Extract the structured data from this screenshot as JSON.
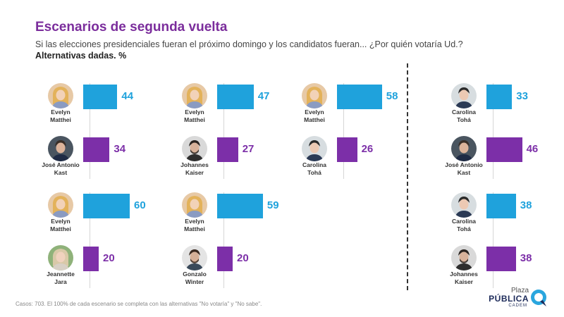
{
  "header": {
    "title": "Escenarios de segunda vuelta",
    "subtitle": "Si las elecciones presidenciales fueran el próximo domingo y los candidatos fueran... ¿Por quién votaría Ud.?",
    "subtitle2": "Alternativas dadas. %"
  },
  "colors": {
    "candidate1": "#1fa2dc",
    "candidate2": "#7c2fa8",
    "title": "#7b2d9c"
  },
  "chart_data": {
    "type": "bar",
    "orientation": "horizontal",
    "unit": "%",
    "scenarios": [
      {
        "candidates": [
          {
            "name": "Evelyn Matthei",
            "line1": "Evelyn",
            "line2": "Matthei",
            "value": 44,
            "icon": "evelyn-matthei-avatar"
          },
          {
            "name": "José Antonio Kast",
            "line1": "José Antonio",
            "line2": "Kast",
            "value": 34,
            "icon": "jose-antonio-kast-avatar"
          }
        ]
      },
      {
        "candidates": [
          {
            "name": "Evelyn Matthei",
            "line1": "Evelyn",
            "line2": "Matthei",
            "value": 47,
            "icon": "evelyn-matthei-avatar"
          },
          {
            "name": "Johannes Kaiser",
            "line1": "Johannes",
            "line2": "Kaiser",
            "value": 27,
            "icon": "johannes-kaiser-avatar"
          }
        ]
      },
      {
        "candidates": [
          {
            "name": "Evelyn Matthei",
            "line1": "Evelyn",
            "line2": "Matthei",
            "value": 58,
            "icon": "evelyn-matthei-avatar"
          },
          {
            "name": "Carolina Tohá",
            "line1": "Carolina",
            "line2": "Tohá",
            "value": 26,
            "icon": "carolina-toha-avatar"
          }
        ]
      },
      {
        "candidates": [
          {
            "name": "Carolina Tohá",
            "line1": "Carolina",
            "line2": "Tohá",
            "value": 33,
            "icon": "carolina-toha-avatar"
          },
          {
            "name": "José Antonio Kast",
            "line1": "José Antonio",
            "line2": "Kast",
            "value": 46,
            "icon": "jose-antonio-kast-avatar"
          }
        ]
      },
      {
        "candidates": [
          {
            "name": "Evelyn Matthei",
            "line1": "Evelyn",
            "line2": "Matthei",
            "value": 60,
            "icon": "evelyn-matthei-avatar"
          },
          {
            "name": "Jeannette Jara",
            "line1": "Jeannette",
            "line2": "Jara",
            "value": 20,
            "icon": "jeannette-jara-avatar"
          }
        ]
      },
      {
        "candidates": [
          {
            "name": "Evelyn Matthei",
            "line1": "Evelyn",
            "line2": "Matthei",
            "value": 59,
            "icon": "evelyn-matthei-avatar"
          },
          {
            "name": "Gonzalo Winter",
            "line1": "Gonzalo",
            "line2": "Winter",
            "value": 20,
            "icon": "gonzalo-winter-avatar"
          }
        ]
      },
      {
        "candidates": [
          {
            "name": "Carolina Tohá",
            "line1": "Carolina",
            "line2": "Tohá",
            "value": 38,
            "icon": "carolina-toha-avatar"
          },
          {
            "name": "Johannes Kaiser",
            "line1": "Johannes",
            "line2": "Kaiser",
            "value": 38,
            "icon": "johannes-kaiser-avatar"
          }
        ]
      }
    ]
  },
  "footnote": "Casos: 703. El 100% de cada escenario se completa con las alternativas \"No votaría\" y \"No sabe\".",
  "logo": {
    "line1": "Plaza",
    "line2": "PÚBLICA",
    "line3": "CADEM",
    "icon": "plaza-publica-logo-icon"
  }
}
